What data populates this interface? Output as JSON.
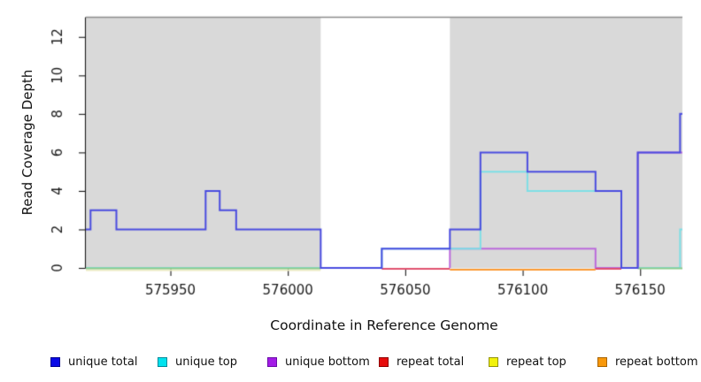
{
  "chart_data": {
    "type": "line",
    "subtype": "step-coverage",
    "title": "",
    "xlabel": "Coordinate in Reference Genome",
    "ylabel": "Read Coverage Depth",
    "xlim": [
      575914,
      576168
    ],
    "ylim": [
      0,
      13
    ],
    "x_ticks": [
      "575950",
      "576000",
      "576050",
      "576100",
      "576150"
    ],
    "x_tick_values": [
      575950,
      576000,
      576050,
      576100,
      576150
    ],
    "y_ticks": [
      "0",
      "2",
      "4",
      "6",
      "8",
      "10",
      "12"
    ],
    "y_tick_values": [
      0,
      2,
      4,
      6,
      8,
      10,
      12
    ],
    "grid": "off",
    "legend_position": "bottom",
    "shade_color": "#D9D9D9",
    "shaded_regions": [
      [
        575914,
        576014
      ],
      [
        576069,
        576168
      ]
    ],
    "series": [
      {
        "name": "unique total",
        "color": "#4A4CDF",
        "points": [
          [
            575914,
            2
          ],
          [
            575916,
            3
          ],
          [
            575927,
            2
          ],
          [
            575965,
            4
          ],
          [
            575971,
            3
          ],
          [
            575978,
            2
          ],
          [
            576014,
            0
          ],
          [
            576040,
            1
          ],
          [
            576069,
            2
          ],
          [
            576082,
            6
          ],
          [
            576102,
            5
          ],
          [
            576131,
            4
          ],
          [
            576142,
            0
          ],
          [
            576149,
            6
          ],
          [
            576167,
            8
          ]
        ]
      },
      {
        "name": "unique top",
        "color": "#7EDFE6",
        "points": [
          [
            575914,
            0
          ],
          [
            576040,
            1
          ],
          [
            576082,
            5
          ],
          [
            576102,
            4
          ],
          [
            576142,
            0
          ],
          [
            576167,
            2
          ]
        ]
      },
      {
        "name": "unique bottom",
        "color": "#BB6ADC",
        "draw_start": 576069,
        "points": [
          [
            575914,
            0
          ],
          [
            576069,
            1
          ],
          [
            576131,
            0
          ],
          [
            576149,
            6
          ]
        ]
      },
      {
        "name": "repeat total",
        "color": "#E60C0C",
        "points": [
          [
            575914,
            0
          ]
        ]
      },
      {
        "name": "repeat top",
        "color": "#F2F20A",
        "points": [
          [
            575914,
            0
          ]
        ]
      },
      {
        "name": "repeat bottom",
        "color": "#F8980A",
        "points": [
          [
            575914,
            0
          ]
        ]
      }
    ],
    "baseline_overlaps": [
      {
        "x1": 575914,
        "x2": 576014,
        "y": 0,
        "dy": 2.6,
        "color": "#EDEBC4"
      },
      {
        "x1": 575914,
        "x2": 576014,
        "y": 0,
        "dy": 0.4,
        "color": "#8BCB8B"
      },
      {
        "x1": 576149,
        "x2": 576168,
        "y": 0,
        "dy": 0.4,
        "color": "#8BCB8B"
      },
      {
        "x1": 576069,
        "x2": 576131,
        "y": 0,
        "dy": 2.0,
        "color": "#FB9A32"
      },
      {
        "x1": 576040,
        "x2": 576069,
        "y": 0,
        "dy": 1.0,
        "color": "#E0506E"
      },
      {
        "x1": 576131,
        "x2": 576142,
        "y": 0,
        "dy": 1.0,
        "color": "#E0506E"
      }
    ],
    "draw_order": [
      "repeat total",
      "repeat top",
      "repeat bottom",
      "unique bottom",
      "unique top",
      "__baselines__",
      "unique total"
    ]
  },
  "axes": {
    "x_label": "Coordinate in Reference Genome",
    "y_label": "Read Coverage Depth"
  },
  "legend": {
    "items": [
      {
        "label": "unique total",
        "fill": "#0A0AE6",
        "border": "#000090"
      },
      {
        "label": "unique top",
        "fill": "#00E2EE",
        "border": "#008A9A"
      },
      {
        "label": "unique bottom",
        "fill": "#A31CE6",
        "border": "#6A0DA8"
      },
      {
        "label": "repeat total",
        "fill": "#E60C0C",
        "border": "#8F0000"
      },
      {
        "label": "repeat top",
        "fill": "#F2F20A",
        "border": "#93930A"
      },
      {
        "label": "repeat bottom",
        "fill": "#F8980A",
        "border": "#A86400"
      }
    ]
  },
  "style": {
    "axis_color": "#1a1a1a",
    "tick_label_color": "#1a1a1a",
    "plot_top_border_color": "#8C8C8C",
    "background": "#FFFFFF"
  }
}
